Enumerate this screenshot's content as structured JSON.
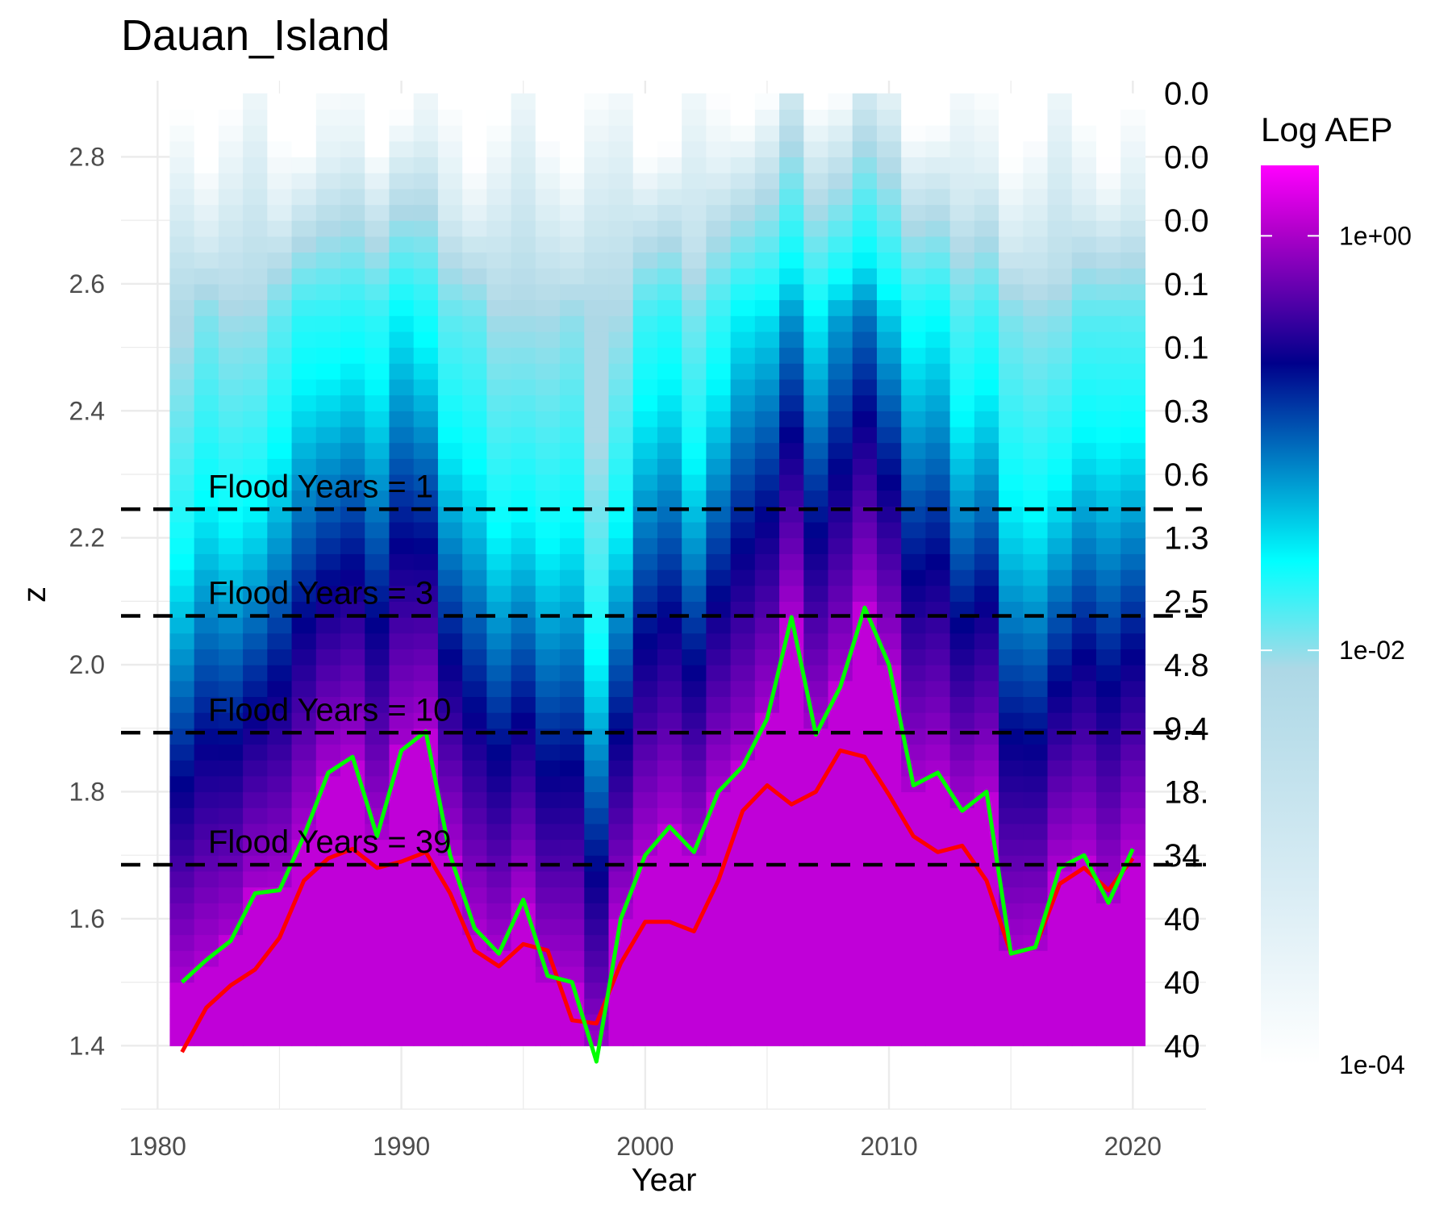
{
  "chart_data": {
    "type": "heatmap",
    "title": "Dauan_Island",
    "xlabel": "Year",
    "ylabel": "z",
    "xlim": [
      1978.5,
      2023
    ],
    "ylim": [
      1.3,
      2.92
    ],
    "x_ticks": [
      "1980",
      "1990",
      "2000",
      "2010",
      "2020"
    ],
    "y_ticks": [
      "1.4",
      "1.6",
      "1.8",
      "2.0",
      "2.2",
      "2.4",
      "2.6",
      "2.8"
    ],
    "right_labels": [
      {
        "z": 2.9,
        "label": "0.0"
      },
      {
        "z": 2.8,
        "label": "0.0"
      },
      {
        "z": 2.7,
        "label": "0.0"
      },
      {
        "z": 2.6,
        "label": "0.1"
      },
      {
        "z": 2.5,
        "label": "0.1"
      },
      {
        "z": 2.4,
        "label": "0.3"
      },
      {
        "z": 2.3,
        "label": "0.6"
      },
      {
        "z": 2.2,
        "label": "1.3"
      },
      {
        "z": 2.1,
        "label": "2.5"
      },
      {
        "z": 2.0,
        "label": "4.8"
      },
      {
        "z": 1.9,
        "label": "9.4"
      },
      {
        "z": 1.8,
        "label": "18."
      },
      {
        "z": 1.7,
        "label": "34."
      },
      {
        "z": 1.6,
        "label": "40"
      },
      {
        "z": 1.5,
        "label": "40"
      },
      {
        "z": 1.4,
        "label": "40"
      }
    ],
    "flood_lines": [
      {
        "z": 2.245,
        "label": "Flood Years = 1"
      },
      {
        "z": 2.077,
        "label": "Flood Years = 3"
      },
      {
        "z": 1.893,
        "label": "Flood Years = 10"
      },
      {
        "z": 1.685,
        "label": "Flood Years = 39"
      }
    ],
    "legend": {
      "title": "Log AEP",
      "scale": "log",
      "ticks": [
        "1e+00",
        "1e-02",
        "1e-04"
      ],
      "colors": [
        "#f8f8f8",
        "#add8e6",
        "#00ffff",
        "#00008b",
        "#cc00cc",
        "#ff00ff"
      ]
    },
    "heatmap": {
      "years": [
        1981,
        2020
      ],
      "z_range": [
        1.4,
        2.9
      ],
      "colors": [
        "#ffffff",
        "#add8e6",
        "#00ffff",
        "#00008b",
        "#c000d8"
      ]
    },
    "series": [
      {
        "color": "#ff0000",
        "x": [
          1981,
          1982,
          1983,
          1984,
          1985,
          1986,
          1987,
          1988,
          1989,
          1990,
          1991,
          1992,
          1993,
          1994,
          1995,
          1996,
          1997,
          1998,
          1999,
          2000,
          2001,
          2002,
          2003,
          2004,
          2005,
          2006,
          2007,
          2008,
          2009,
          2010,
          2011,
          2012,
          2013,
          2014,
          2015,
          2016,
          2017,
          2018,
          2019,
          2020
        ],
        "y": [
          1.39,
          1.46,
          1.495,
          1.52,
          1.57,
          1.66,
          1.695,
          1.71,
          1.68,
          1.69,
          1.705,
          1.64,
          1.55,
          1.525,
          1.56,
          1.55,
          1.44,
          1.435,
          1.53,
          1.595,
          1.595,
          1.58,
          1.66,
          1.77,
          1.81,
          1.78,
          1.8,
          1.865,
          1.855,
          1.795,
          1.73,
          1.705,
          1.715,
          1.66,
          1.545,
          1.555,
          1.655,
          1.68,
          1.645,
          1.695
        ]
      },
      {
        "color": "#00ff00",
        "x": [
          1981,
          1982,
          1983,
          1984,
          1985,
          1986,
          1987,
          1988,
          1989,
          1990,
          1991,
          1992,
          1993,
          1994,
          1995,
          1996,
          1997,
          1998,
          1999,
          2000,
          2001,
          2002,
          2003,
          2004,
          2005,
          2006,
          2007,
          2008,
          2009,
          2010,
          2011,
          2012,
          2013,
          2014,
          2015,
          2016,
          2017,
          2018,
          2019,
          2020
        ],
        "y": [
          1.5,
          1.535,
          1.565,
          1.64,
          1.645,
          1.73,
          1.83,
          1.855,
          1.73,
          1.865,
          1.895,
          1.7,
          1.585,
          1.545,
          1.63,
          1.51,
          1.5,
          1.375,
          1.6,
          1.7,
          1.745,
          1.705,
          1.8,
          1.84,
          1.915,
          2.075,
          1.89,
          1.965,
          2.09,
          2.0,
          1.81,
          1.83,
          1.77,
          1.8,
          1.545,
          1.555,
          1.68,
          1.7,
          1.625,
          1.71
        ]
      }
    ]
  }
}
